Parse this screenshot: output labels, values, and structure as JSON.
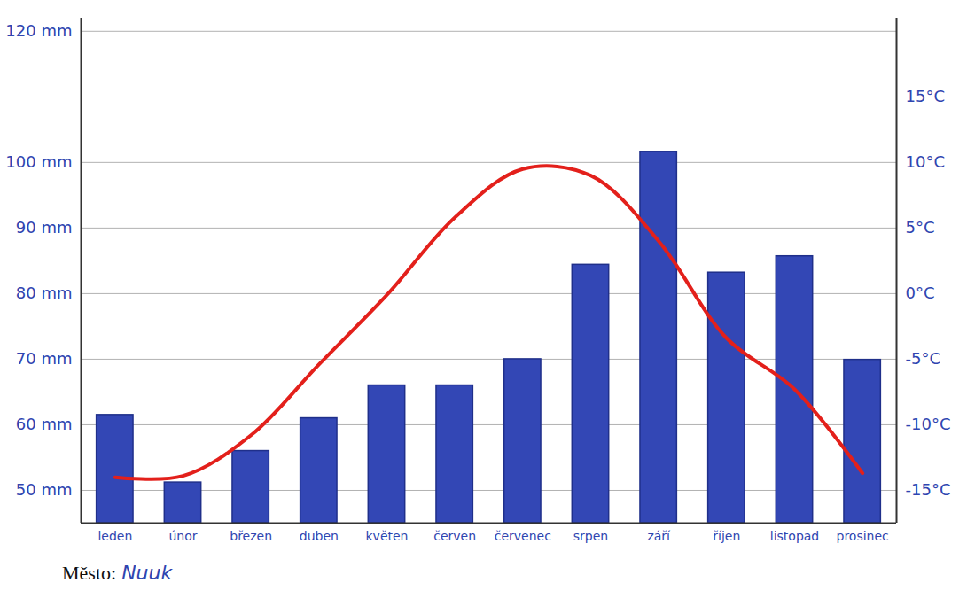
{
  "chart_data": {
    "type": "bar",
    "categories": [
      "leden",
      "únor",
      "březen",
      "duben",
      "květen",
      "červen",
      "červenec",
      "srpen",
      "září",
      "říjen",
      "listopad",
      "prosinec"
    ],
    "series": [
      {
        "type": "bar",
        "color": "#3347b5",
        "values": [
          61.5,
          51.2,
          56,
          61,
          66,
          66,
          70,
          84.4,
          101.6,
          83.2,
          85.7,
          69.9
        ]
      },
      {
        "type": "line",
        "axis": "y2",
        "color": "#e3201b",
        "values": [
          -14,
          -13.9,
          -10.8,
          -5.4,
          -0.1,
          5.8,
          9.5,
          9,
          4,
          -3.4,
          -7.3,
          -13.7
        ]
      }
    ],
    "ylim": [
      45,
      122
    ],
    "yticks": [
      {
        "value": 50,
        "label": "50 mm"
      },
      {
        "value": 60,
        "label": "60 mm"
      },
      {
        "value": 70,
        "label": "70 mm"
      },
      {
        "value": 80,
        "label": "80 mm"
      },
      {
        "value": 90,
        "label": "90 mm"
      },
      {
        "value": 100,
        "label": "100 mm"
      },
      {
        "value": 120,
        "label": "120 mm"
      }
    ],
    "y2lim": [
      -17.5,
      21
    ],
    "y2ticks": [
      {
        "value": -15,
        "label": "-15°C"
      },
      {
        "value": -10,
        "label": "-10°C"
      },
      {
        "value": -5,
        "label": "-5°C"
      },
      {
        "value": 0,
        "label": "0°C"
      },
      {
        "value": 5,
        "label": "5°C"
      },
      {
        "value": 10,
        "label": "10°C"
      },
      {
        "value": 15,
        "label": "15°C"
      }
    ],
    "grid": true,
    "city_label": "Město:",
    "city": "Nuuk"
  }
}
